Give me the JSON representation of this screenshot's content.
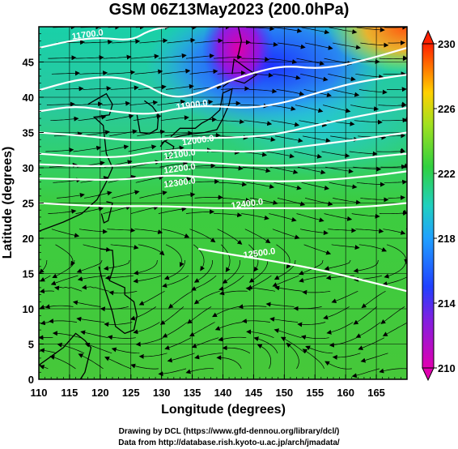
{
  "title": "GSM 06Z13May2023 (200.0hPa)",
  "x_axis": {
    "label": "Longitude (degrees)",
    "range": [
      110,
      170
    ],
    "ticks": [
      "110",
      "115",
      "120",
      "125",
      "130",
      "135",
      "140",
      "145",
      "150",
      "155",
      "160",
      "165"
    ]
  },
  "y_axis": {
    "label": "Latitude  (degrees)",
    "range": [
      0,
      50
    ],
    "ticks": [
      "0",
      "5",
      "10",
      "15",
      "20",
      "25",
      "30",
      "35",
      "40",
      "45"
    ]
  },
  "colorbar": {
    "range": [
      210,
      230
    ],
    "ticks": [
      "210",
      "214",
      "218",
      "222",
      "226",
      "230"
    ]
  },
  "contours": [
    {
      "label": "11700.0",
      "lon": 118,
      "lat": 48.5
    },
    {
      "label": "11900.0",
      "lon": 135,
      "lat": 38.5
    },
    {
      "label": "12000.0",
      "lon": 136,
      "lat": 33.5
    },
    {
      "label": "12100.0",
      "lon": 133,
      "lat": 31.5
    },
    {
      "label": "12200.0",
      "lon": 133,
      "lat": 29.5
    },
    {
      "label": "12300.0",
      "lon": 133,
      "lat": 27.5
    },
    {
      "label": "12400.0",
      "lon": 144,
      "lat": 24.5
    },
    {
      "label": "12500.0",
      "lon": 146,
      "lat": 17.5
    }
  ],
  "credits": {
    "line1": "Drawing by DCL (https://www.gfd-dennou.org/library/dcl/)",
    "line2": "Data from http://database.rish.kyoto-u.ac.jp/arch/jmadata/"
  },
  "colors": {
    "low": "#d000a0",
    "mid_low": "#2040ff",
    "mid": "#20d040",
    "high": "#ffd000",
    "top": "#ff3000"
  }
}
